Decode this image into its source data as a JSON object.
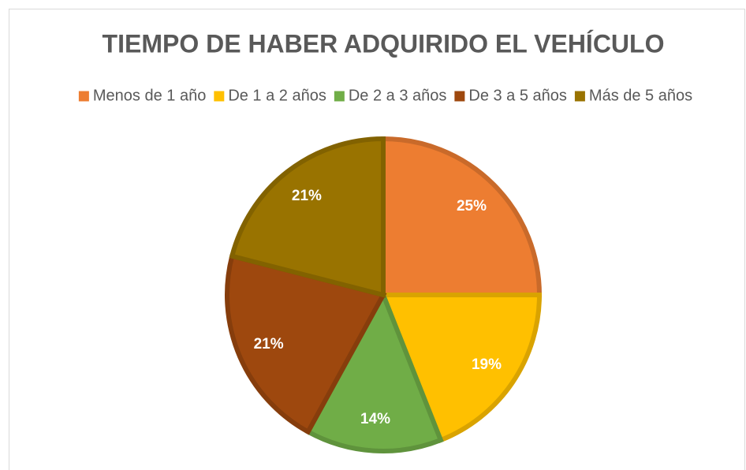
{
  "chart_data": {
    "type": "pie",
    "title": "TIEMPO DE HABER ADQUIRIDO EL VEHÍCULO",
    "categories": [
      "Menos de 1 año",
      "De 1 a 2 años",
      "De 2 a 3 años",
      "De 3 a 5 años",
      "Más de 5 años"
    ],
    "values": [
      25,
      19,
      14,
      21,
      21
    ],
    "value_labels": [
      "25%",
      "19%",
      "14%",
      "21%",
      "21%"
    ],
    "colors": [
      "#ED7D31",
      "#FFC000",
      "#70AD47",
      "#9E480E",
      "#997300"
    ],
    "legend": "top"
  }
}
